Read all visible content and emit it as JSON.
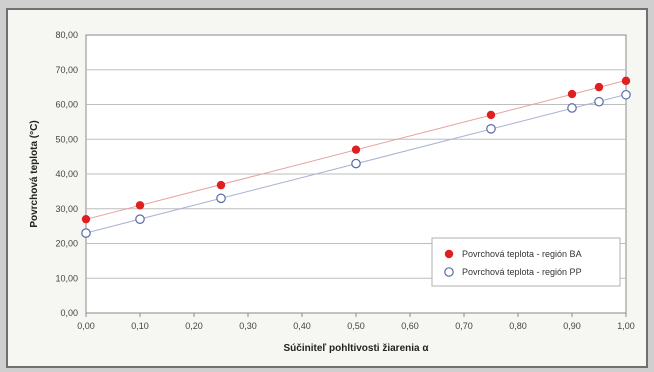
{
  "chart_data": {
    "type": "scatter",
    "xlabel": "Súčiniteľ pohltivosti žiarenia α",
    "ylabel": "Povrchová teplota (°C)",
    "xlim": [
      0,
      1
    ],
    "ylim": [
      0,
      80
    ],
    "x_ticks": [
      "0,00",
      "0,10",
      "0,20",
      "0,30",
      "0,40",
      "0,50",
      "0,60",
      "0,70",
      "0,80",
      "0,90",
      "1,00"
    ],
    "y_ticks": [
      "0,00",
      "10,00",
      "20,00",
      "30,00",
      "40,00",
      "50,00",
      "60,00",
      "70,00",
      "80,00"
    ],
    "grid": "horizontal",
    "legend_position": "bottom-right",
    "trendlines": true,
    "series": [
      {
        "name": "Povrchová teplota - región BA",
        "marker": "filled-circle",
        "color": "#e02020",
        "x": [
          0.0,
          0.1,
          0.25,
          0.5,
          0.75,
          0.9,
          0.95,
          1.0
        ],
        "y": [
          27.0,
          31.0,
          36.8,
          47.0,
          57.0,
          63.0,
          65.0,
          66.8
        ]
      },
      {
        "name": "Povrchová teplota - región PP",
        "marker": "hollow-circle",
        "color": "#5a6aa8",
        "x": [
          0.0,
          0.1,
          0.25,
          0.5,
          0.75,
          0.9,
          0.95,
          1.0
        ],
        "y": [
          23.0,
          27.0,
          33.0,
          43.0,
          53.0,
          59.0,
          60.8,
          62.8
        ]
      }
    ]
  }
}
